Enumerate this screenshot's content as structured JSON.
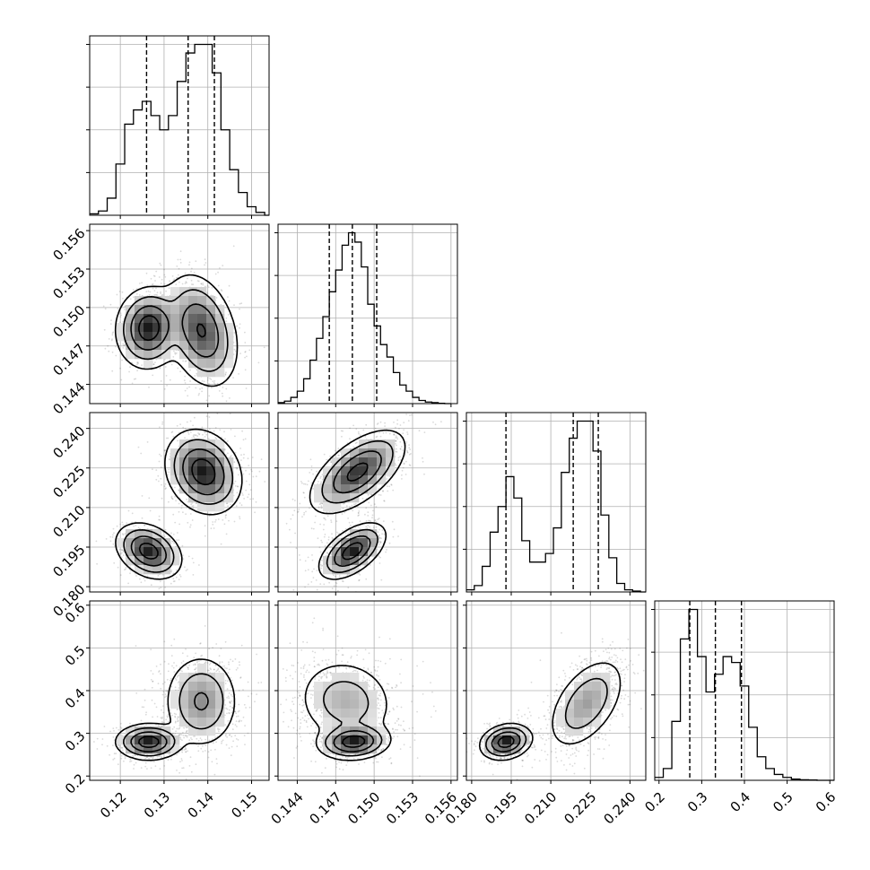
{
  "chart_data": {
    "type": "corner",
    "title": "",
    "grid": true,
    "parameters": [
      {
        "name": "",
        "range": [
          0.113,
          0.154
        ],
        "ticks": [
          0.12,
          0.13,
          0.14,
          0.15
        ],
        "tick_labels": [
          "0.12",
          "0.13",
          "0.14",
          "0.15"
        ],
        "quantiles": [
          0.126,
          0.1355,
          0.1415
        ],
        "hist": {
          "bins": [
            0.113,
            0.115,
            0.117,
            0.119,
            0.121,
            0.123,
            0.125,
            0.127,
            0.129,
            0.131,
            0.133,
            0.135,
            0.137,
            0.139,
            0.141,
            0.143,
            0.145,
            0.147,
            0.149,
            0.151,
            0.153,
            0.154
          ],
          "counts": [
            0.5,
            1.5,
            6,
            18,
            32,
            37,
            40,
            35,
            30,
            35,
            47,
            57,
            60,
            60,
            50,
            30,
            16,
            8,
            3,
            1,
            0
          ]
        }
      },
      {
        "name": "",
        "range": [
          0.1425,
          0.1565
        ],
        "ticks": [
          0.144,
          0.147,
          0.15,
          0.153,
          0.156
        ],
        "tick_labels": [
          "0.144",
          "0.147",
          "0.150",
          "0.153",
          "0.156"
        ],
        "quantiles": [
          0.1465,
          0.1483,
          0.1502
        ],
        "hist": {
          "bins": [
            0.1425,
            0.143,
            0.1435,
            0.144,
            0.1445,
            0.145,
            0.1455,
            0.146,
            0.1465,
            0.147,
            0.1475,
            0.148,
            0.1485,
            0.149,
            0.1495,
            0.15,
            0.1505,
            0.151,
            0.1515,
            0.152,
            0.1525,
            0.153,
            0.1535,
            0.154,
            0.1545,
            0.155,
            0.1555,
            0.156
          ],
          "counts": [
            0.3,
            0.8,
            2,
            4,
            8,
            14,
            21,
            28,
            36,
            43,
            51,
            55,
            52,
            44,
            32,
            25,
            19,
            15,
            10,
            6,
            4,
            2,
            1,
            0.5,
            0.3,
            0.1,
            0
          ]
        }
      },
      {
        "name": "",
        "range": [
          0.178,
          0.246
        ],
        "ticks": [
          0.18,
          0.195,
          0.21,
          0.225,
          0.24
        ],
        "tick_labels": [
          "0.180",
          "0.195",
          "0.210",
          "0.225",
          "0.240"
        ],
        "quantiles": [
          0.193,
          0.2185,
          0.228
        ],
        "hist": {
          "bins": [
            0.178,
            0.181,
            0.184,
            0.187,
            0.19,
            0.193,
            0.196,
            0.199,
            0.202,
            0.205,
            0.208,
            0.211,
            0.214,
            0.217,
            0.22,
            0.223,
            0.226,
            0.229,
            0.232,
            0.235,
            0.238,
            0.241,
            0.244,
            0.246
          ],
          "counts": [
            0.5,
            1.5,
            6,
            14,
            20,
            27,
            22,
            12,
            7,
            7,
            9,
            15,
            28,
            36,
            40,
            40,
            33,
            18,
            8,
            2,
            0.5,
            0.2,
            0
          ]
        }
      },
      {
        "name": "",
        "range": [
          0.19,
          0.61
        ],
        "ticks": [
          0.2,
          0.3,
          0.4,
          0.5,
          0.6
        ],
        "tick_labels": [
          "0.2",
          "0.3",
          "0.4",
          "0.5",
          "0.6"
        ],
        "quantiles": [
          0.272,
          0.332,
          0.393
        ],
        "hist": {
          "bins": [
            0.19,
            0.21,
            0.23,
            0.25,
            0.27,
            0.29,
            0.31,
            0.33,
            0.35,
            0.37,
            0.39,
            0.41,
            0.43,
            0.45,
            0.47,
            0.49,
            0.51,
            0.53,
            0.55,
            0.57,
            0.59,
            0.61
          ],
          "counts": [
            0.5,
            2,
            10,
            24,
            29,
            21,
            15,
            18,
            21,
            20,
            16,
            9,
            4,
            2,
            1,
            0.5,
            0.2,
            0.1,
            0.05,
            0,
            0
          ]
        }
      }
    ],
    "hist_yticks_fraction": [
      0.25,
      0.5,
      0.75,
      1.0
    ],
    "pairs": [
      {
        "row": 1,
        "col": 0,
        "modes": [
          {
            "center": [
              0.1265,
              0.1484
            ],
            "sigma": [
              0.0032,
              0.00135
            ],
            "rho": 0.05,
            "weight": 0.45
          },
          {
            "center": [
              0.1385,
              0.1482
            ],
            "sigma": [
              0.0036,
              0.0019
            ],
            "rho": -0.3,
            "weight": 0.55
          }
        ]
      },
      {
        "row": 2,
        "col": 0,
        "modes": [
          {
            "center": [
              0.1265,
              0.1935
            ],
            "sigma": [
              0.0032,
              0.0045
            ],
            "rho": -0.3,
            "weight": 0.35
          },
          {
            "center": [
              0.139,
              0.2235
            ],
            "sigma": [
              0.0037,
              0.0068
            ],
            "rho": -0.2,
            "weight": 0.65
          }
        ]
      },
      {
        "row": 2,
        "col": 1,
        "modes": [
          {
            "center": [
              0.1483,
              0.1935
            ],
            "sigma": [
              0.0011,
              0.0045
            ],
            "rho": 0.55,
            "weight": 0.35
          },
          {
            "center": [
              0.1487,
              0.2235
            ],
            "sigma": [
              0.0016,
              0.0068
            ],
            "rho": 0.6,
            "weight": 0.65
          }
        ]
      },
      {
        "row": 3,
        "col": 0,
        "modes": [
          {
            "center": [
              0.1265,
              0.28
            ],
            "sigma": [
              0.0032,
              0.018
            ],
            "rho": 0.0,
            "weight": 0.4
          },
          {
            "center": [
              0.1385,
              0.375
            ],
            "sigma": [
              0.0037,
              0.048
            ],
            "rho": 0.0,
            "weight": 0.6
          }
        ]
      },
      {
        "row": 3,
        "col": 1,
        "modes": [
          {
            "center": [
              0.1484,
              0.28
            ],
            "sigma": [
              0.0012,
              0.018
            ],
            "rho": 0.1,
            "weight": 0.45
          },
          {
            "center": [
              0.1478,
              0.375
            ],
            "sigma": [
              0.0017,
              0.045
            ],
            "rho": -0.1,
            "weight": 0.55
          }
        ]
      },
      {
        "row": 3,
        "col": 2,
        "modes": [
          {
            "center": [
              0.193,
              0.28
            ],
            "sigma": [
              0.0042,
              0.018
            ],
            "rho": 0.2,
            "weight": 0.4
          },
          {
            "center": [
              0.2235,
              0.37
            ],
            "sigma": [
              0.0065,
              0.048
            ],
            "rho": 0.5,
            "weight": 0.6
          }
        ]
      }
    ]
  }
}
